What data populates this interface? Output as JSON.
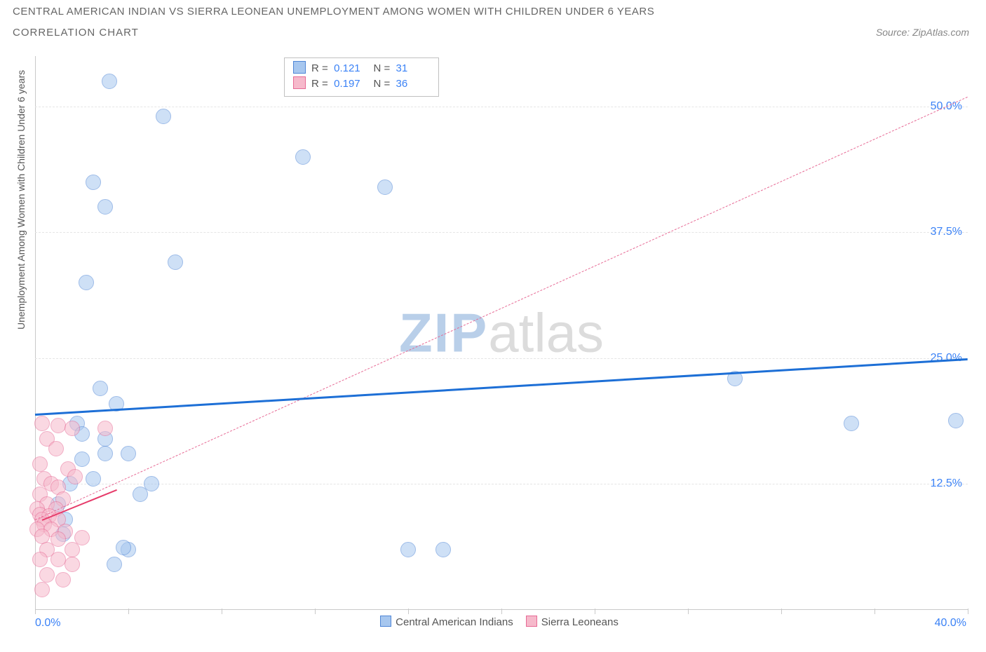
{
  "title": "CENTRAL AMERICAN INDIAN VS SIERRA LEONEAN UNEMPLOYMENT AMONG WOMEN WITH CHILDREN UNDER 6 YEARS",
  "subtitle": "CORRELATION CHART",
  "source": "Source: ZipAtlas.com",
  "ylabel": "Unemployment Among Women with Children Under 6 years",
  "watermark_a": "ZIP",
  "watermark_b": "atlas",
  "chart": {
    "type": "scatter",
    "xlim": [
      0,
      40
    ],
    "ylim": [
      0,
      55
    ],
    "xtick_positions": [
      0,
      4,
      8,
      12,
      16,
      20,
      24,
      28,
      32,
      36,
      40
    ],
    "x_min_label": "0.0%",
    "x_max_label": "40.0%",
    "yticks": [
      {
        "v": 12.5,
        "label": "12.5%"
      },
      {
        "v": 25.0,
        "label": "25.0%"
      },
      {
        "v": 37.5,
        "label": "37.5%"
      },
      {
        "v": 50.0,
        "label": "50.0%"
      }
    ],
    "background_color": "#ffffff",
    "grid_color": "#e5e5e5",
    "axis_color": "#c9c9c9",
    "title_color": "#666666",
    "label_color": "#555555",
    "tick_label_color": "#3b82f6",
    "point_radius": 10,
    "point_opacity": 0.55,
    "series": [
      {
        "key": "cai",
        "label": "Central American Indians",
        "fill": "#a7c7ef",
        "stroke": "#4f86d6",
        "trend": {
          "color": "#1d6fd6",
          "width": 3,
          "style": "solid",
          "x1": 0,
          "y1": 19.5,
          "x2": 40,
          "y2": 25.0
        },
        "stats": {
          "R": "0.121",
          "N": "31"
        },
        "points": [
          {
            "x": 3.2,
            "y": 52.5
          },
          {
            "x": 5.5,
            "y": 49.0
          },
          {
            "x": 2.5,
            "y": 42.5
          },
          {
            "x": 3.0,
            "y": 40.0
          },
          {
            "x": 6.0,
            "y": 34.5
          },
          {
            "x": 2.2,
            "y": 32.5
          },
          {
            "x": 11.5,
            "y": 45.0
          },
          {
            "x": 15.0,
            "y": 42.0
          },
          {
            "x": 2.8,
            "y": 22.0
          },
          {
            "x": 3.5,
            "y": 20.5
          },
          {
            "x": 1.8,
            "y": 18.5
          },
          {
            "x": 2.0,
            "y": 17.5
          },
          {
            "x": 3.0,
            "y": 17.0
          },
          {
            "x": 2.0,
            "y": 15.0
          },
          {
            "x": 3.0,
            "y": 15.5
          },
          {
            "x": 4.0,
            "y": 15.5
          },
          {
            "x": 2.5,
            "y": 13.0
          },
          {
            "x": 5.0,
            "y": 12.5
          },
          {
            "x": 1.5,
            "y": 12.5
          },
          {
            "x": 1.0,
            "y": 10.5
          },
          {
            "x": 4.5,
            "y": 11.5
          },
          {
            "x": 1.3,
            "y": 9.0
          },
          {
            "x": 4.0,
            "y": 6.0
          },
          {
            "x": 3.4,
            "y": 4.5
          },
          {
            "x": 3.8,
            "y": 6.2
          },
          {
            "x": 16.0,
            "y": 6.0
          },
          {
            "x": 17.5,
            "y": 6.0
          },
          {
            "x": 30.0,
            "y": 23.0
          },
          {
            "x": 35.0,
            "y": 18.5
          },
          {
            "x": 39.5,
            "y": 18.8
          },
          {
            "x": 1.2,
            "y": 7.5
          }
        ]
      },
      {
        "key": "sl",
        "label": "Sierra Leoneans",
        "fill": "#f6b9cb",
        "stroke": "#e76a95",
        "trend": {
          "color": "#e76a95",
          "width": 1,
          "style": "dashed",
          "x1": 0,
          "y1": 9.0,
          "x2": 40,
          "y2": 51.0
        },
        "stats": {
          "R": "0.197",
          "N": "36"
        },
        "points": [
          {
            "x": 0.3,
            "y": 18.5
          },
          {
            "x": 1.0,
            "y": 18.3
          },
          {
            "x": 1.6,
            "y": 18.0
          },
          {
            "x": 0.5,
            "y": 17.0
          },
          {
            "x": 0.9,
            "y": 16.0
          },
          {
            "x": 3.0,
            "y": 18.0
          },
          {
            "x": 0.2,
            "y": 14.5
          },
          {
            "x": 1.4,
            "y": 14.0
          },
          {
            "x": 0.4,
            "y": 13.0
          },
          {
            "x": 1.7,
            "y": 13.2
          },
          {
            "x": 0.7,
            "y": 12.5
          },
          {
            "x": 1.0,
            "y": 12.2
          },
          {
            "x": 0.2,
            "y": 11.5
          },
          {
            "x": 1.2,
            "y": 11.0
          },
          {
            "x": 0.5,
            "y": 10.5
          },
          {
            "x": 0.1,
            "y": 10.0
          },
          {
            "x": 0.9,
            "y": 10.0
          },
          {
            "x": 0.2,
            "y": 9.5
          },
          {
            "x": 0.6,
            "y": 9.3
          },
          {
            "x": 0.3,
            "y": 9.0
          },
          {
            "x": 1.0,
            "y": 9.0
          },
          {
            "x": 0.4,
            "y": 8.5
          },
          {
            "x": 0.1,
            "y": 8.0
          },
          {
            "x": 0.7,
            "y": 8.0
          },
          {
            "x": 1.3,
            "y": 7.8
          },
          {
            "x": 0.3,
            "y": 7.3
          },
          {
            "x": 1.0,
            "y": 7.0
          },
          {
            "x": 2.0,
            "y": 7.2
          },
          {
            "x": 0.5,
            "y": 6.0
          },
          {
            "x": 1.6,
            "y": 6.0
          },
          {
            "x": 0.2,
            "y": 5.0
          },
          {
            "x": 1.0,
            "y": 5.0
          },
          {
            "x": 1.6,
            "y": 4.5
          },
          {
            "x": 0.5,
            "y": 3.5
          },
          {
            "x": 1.2,
            "y": 3.0
          },
          {
            "x": 0.3,
            "y": 2.0
          }
        ]
      }
    ],
    "extra_line": {
      "color": "#e63b6a",
      "width": 2,
      "style": "solid",
      "x1": 0.3,
      "y1": 9.0,
      "x2": 3.5,
      "y2": 12.0
    }
  }
}
